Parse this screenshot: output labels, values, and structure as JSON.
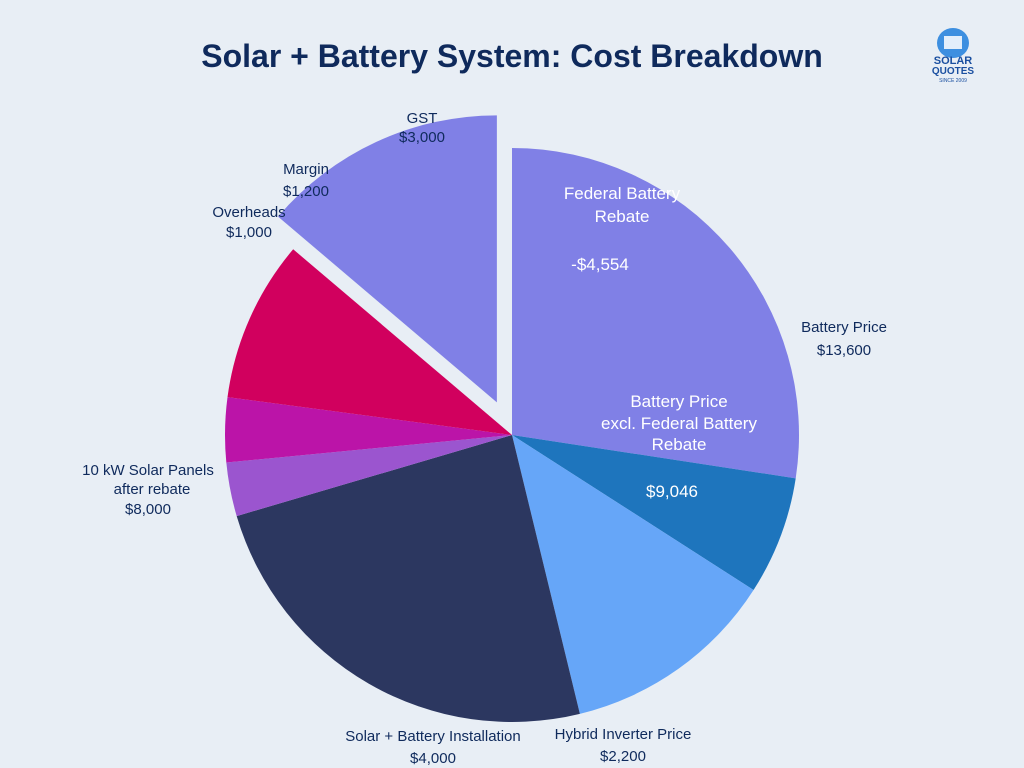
{
  "chart_data": {
    "type": "pie",
    "title": "Solar + Battery System: Cost Breakdown",
    "slices": [
      {
        "label": "Battery Price excl. Federal Battery Rebate",
        "value": 9046,
        "color": "#8080e6",
        "inner_lines": [
          "Battery Price",
          "excl. Federal Battery",
          "Rebate"
        ],
        "inner_value": "$9,046"
      },
      {
        "label": "Hybrid Inverter Price",
        "value": 2200,
        "color": "#1e75bd",
        "value_label": "$2,200"
      },
      {
        "label": "Solar + Battery Installation",
        "value": 4000,
        "color": "#66a6f8",
        "value_label": "$4,000"
      },
      {
        "label": "10 kW Solar Panels after rebate",
        "value": 8000,
        "color": "#2c3760",
        "label_lines": [
          "10 kW Solar Panels",
          "after rebate"
        ],
        "value_label": "$8,000"
      },
      {
        "label": "Overheads",
        "value": 1000,
        "color": "#9b55cf",
        "value_label": "$1,000"
      },
      {
        "label": "Margin",
        "value": 1200,
        "color": "#bb14a8",
        "value_label": "$1,200"
      },
      {
        "label": "GST",
        "value": 3000,
        "color": "#d1005e",
        "value_label": "$3,000"
      },
      {
        "label": "Federal Battery Rebate",
        "value": 4554,
        "color": "#8080e6",
        "exploded": true,
        "inner_lines": [
          "Federal Battery",
          "Rebate"
        ],
        "inner_value": "-$4,554"
      }
    ],
    "annotations": [
      {
        "label": "Battery Price",
        "value": "$13,600"
      }
    ]
  },
  "logo": {
    "line1": "SOLAR",
    "line2": "QUOTES",
    "line3": "SINCE 2009"
  }
}
